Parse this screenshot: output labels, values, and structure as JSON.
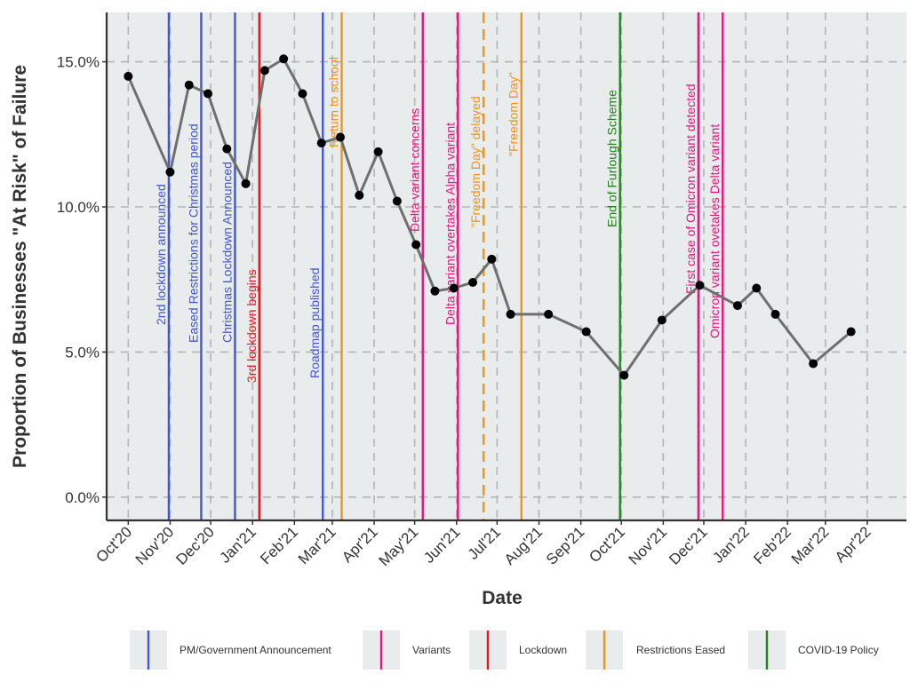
{
  "chart_data": {
    "type": "line",
    "xlabel": "Date",
    "ylabel": "Proportion of Businesses \"At Risk\" of Failure",
    "ylim": [
      -0.008,
      0.167
    ],
    "xlim": [
      "2020-09-15",
      "2022-04-30"
    ],
    "y_ticks": [
      {
        "value": 0.0,
        "label": "0.0%"
      },
      {
        "value": 0.05,
        "label": "5.0%"
      },
      {
        "value": 0.1,
        "label": "10.0%"
      },
      {
        "value": 0.15,
        "label": "15.0%"
      }
    ],
    "x_ticks": [
      {
        "date": "2020-10-01",
        "label": "Oct'20"
      },
      {
        "date": "2020-11-01",
        "label": "Nov'20"
      },
      {
        "date": "2020-12-01",
        "label": "Dec'20"
      },
      {
        "date": "2021-01-01",
        "label": "Jan'21"
      },
      {
        "date": "2021-02-01",
        "label": "Feb'21"
      },
      {
        "date": "2021-03-01",
        "label": "Mar'21"
      },
      {
        "date": "2021-04-01",
        "label": "Apr'21"
      },
      {
        "date": "2021-05-01",
        "label": "May'21"
      },
      {
        "date": "2021-06-01",
        "label": "Jun'21"
      },
      {
        "date": "2021-07-01",
        "label": "Jul'21"
      },
      {
        "date": "2021-08-01",
        "label": "Aug'21"
      },
      {
        "date": "2021-09-01",
        "label": "Sep'21"
      },
      {
        "date": "2021-10-01",
        "label": "Oct'21"
      },
      {
        "date": "2021-11-01",
        "label": "Nov'21"
      },
      {
        "date": "2021-12-01",
        "label": "Dec'21"
      },
      {
        "date": "2022-01-01",
        "label": "Jan'22"
      },
      {
        "date": "2022-02-01",
        "label": "Feb'22"
      },
      {
        "date": "2022-03-01",
        "label": "Mar'22"
      },
      {
        "date": "2022-04-01",
        "label": "Apr'22"
      }
    ],
    "grid": true,
    "series": [
      {
        "color": "#6f6f6f",
        "points": [
          {
            "date": "2020-10-01",
            "y": 0.145
          },
          {
            "date": "2020-11-01",
            "y": 0.112
          },
          {
            "date": "2020-11-15",
            "y": 0.142
          },
          {
            "date": "2020-11-29",
            "y": 0.139
          },
          {
            "date": "2020-12-13",
            "y": 0.12
          },
          {
            "date": "2020-12-27",
            "y": 0.108
          },
          {
            "date": "2021-01-10",
            "y": 0.147
          },
          {
            "date": "2021-01-24",
            "y": 0.151
          },
          {
            "date": "2021-02-07",
            "y": 0.139
          },
          {
            "date": "2021-02-21",
            "y": 0.122
          },
          {
            "date": "2021-03-07",
            "y": 0.124
          },
          {
            "date": "2021-03-21",
            "y": 0.104
          },
          {
            "date": "2021-04-04",
            "y": 0.119
          },
          {
            "date": "2021-04-18",
            "y": 0.102
          },
          {
            "date": "2021-05-02",
            "y": 0.087
          },
          {
            "date": "2021-05-16",
            "y": 0.071
          },
          {
            "date": "2021-05-30",
            "y": 0.072
          },
          {
            "date": "2021-06-13",
            "y": 0.074
          },
          {
            "date": "2021-06-27",
            "y": 0.082
          },
          {
            "date": "2021-07-11",
            "y": 0.063
          },
          {
            "date": "2021-08-08",
            "y": 0.063
          },
          {
            "date": "2021-09-05",
            "y": 0.057
          },
          {
            "date": "2021-10-03",
            "y": 0.042
          },
          {
            "date": "2021-10-31",
            "y": 0.061
          },
          {
            "date": "2021-11-28",
            "y": 0.073
          },
          {
            "date": "2021-12-26",
            "y": 0.066
          },
          {
            "date": "2022-01-09",
            "y": 0.072
          },
          {
            "date": "2022-01-23",
            "y": 0.063
          },
          {
            "date": "2022-02-20",
            "y": 0.046
          },
          {
            "date": "2022-03-20",
            "y": 0.057
          }
        ]
      }
    ],
    "events": [
      {
        "date": "2020-10-31",
        "label": "2nd lockdown announced",
        "category": "PM/Government Announcement",
        "dashed": false
      },
      {
        "date": "2020-11-24",
        "label": "Eased Restrictions for Christmas period",
        "category": "PM/Government Announcement",
        "dashed": false
      },
      {
        "date": "2020-12-19",
        "label": "Christmas Lockdown Announced",
        "category": "PM/Government Announcement",
        "dashed": false
      },
      {
        "date": "2021-01-06",
        "label": "3rd lockdown begins",
        "category": "Lockdown",
        "dashed": false
      },
      {
        "date": "2021-02-22",
        "label": "Roadmap published",
        "category": "PM/Government Announcement",
        "dashed": false
      },
      {
        "date": "2021-03-08",
        "label": "Return to school",
        "category": "Restrictions Eased",
        "dashed": false
      },
      {
        "date": "2021-05-07",
        "label": "Delta variant concerns",
        "category": "Variants",
        "dashed": false
      },
      {
        "date": "2021-06-02",
        "label": "Delta variant overtakes Alpha variant",
        "category": "Variants",
        "dashed": false
      },
      {
        "date": "2021-06-21",
        "label": "\"Freedom Day\" delayed",
        "category": "Restrictions Eased",
        "dashed": true
      },
      {
        "date": "2021-07-19",
        "label": "\"Freedom Day\"",
        "category": "Restrictions Eased",
        "dashed": false
      },
      {
        "date": "2021-09-30",
        "label": "End of Furlough Scheme",
        "category": "COVID-19 Policy",
        "dashed": false
      },
      {
        "date": "2021-11-27",
        "label": "First case of Omicron variant detected",
        "category": "Variants",
        "dashed": false
      },
      {
        "date": "2021-12-15",
        "label": "Omicron variant ovetakes Delta variant",
        "category": "Variants",
        "dashed": false
      }
    ],
    "legend": {
      "position": "bottom",
      "items": [
        {
          "label": "PM/Government Announcement",
          "color": "#4255d4"
        },
        {
          "label": "Variants",
          "color": "#e8137f"
        },
        {
          "label": "Lockdown",
          "color": "#e8171f"
        },
        {
          "label": "Restrictions Eased",
          "color": "#f39216"
        },
        {
          "label": "COVID-19 Policy",
          "color": "#24811d"
        }
      ]
    },
    "colors": {
      "panel_background": "#e9ecec",
      "gridline": "#b4b4b4",
      "axis_line": "#333333",
      "point": "#000000"
    }
  }
}
